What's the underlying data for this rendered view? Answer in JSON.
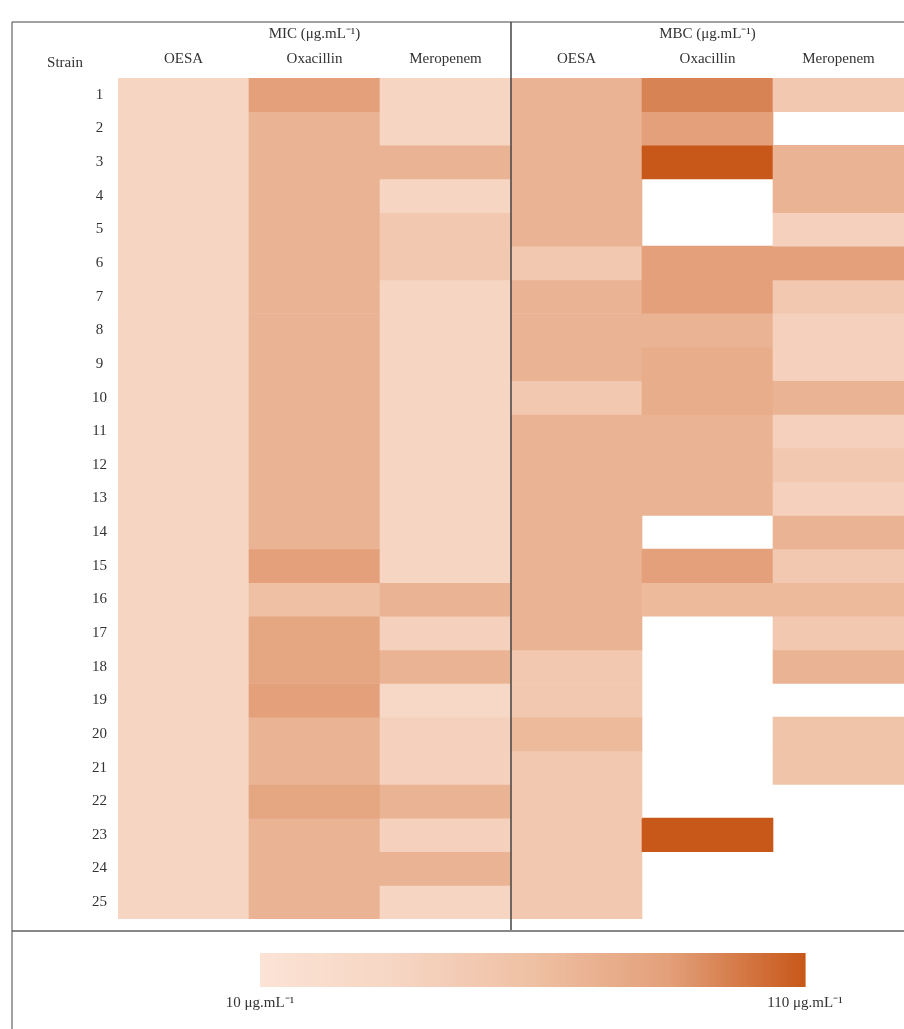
{
  "chart_data": {
    "type": "heatmap",
    "ylabel": "Strain",
    "annotations": [
      "MIC (μg.mL⁻¹)",
      "MBC (μg.mL⁻¹)"
    ],
    "categories": [
      "OESA",
      "Oxacillin",
      "Meropenem",
      "OESA",
      "Oxacillin",
      "Meropenem"
    ],
    "y_categories": [
      "1",
      "2",
      "3",
      "4",
      "5",
      "6",
      "7",
      "8",
      "9",
      "10",
      "11",
      "12",
      "13",
      "14",
      "15",
      "16",
      "17",
      "18",
      "19",
      "20",
      "21",
      "22",
      "23",
      "24",
      "25"
    ],
    "cells": [
      [
        35,
        85,
        35,
        70,
        95,
        50
      ],
      [
        35,
        70,
        35,
        70,
        85,
        null
      ],
      [
        35,
        70,
        70,
        70,
        110,
        70
      ],
      [
        35,
        70,
        35,
        70,
        null,
        70
      ],
      [
        35,
        70,
        50,
        70,
        null,
        40
      ],
      [
        35,
        70,
        50,
        50,
        85,
        85
      ],
      [
        35,
        70,
        35,
        70,
        85,
        50
      ],
      [
        35,
        70,
        35,
        70,
        70,
        40
      ],
      [
        35,
        70,
        35,
        70,
        75,
        40
      ],
      [
        35,
        70,
        35,
        50,
        75,
        70
      ],
      [
        35,
        70,
        35,
        70,
        70,
        40
      ],
      [
        35,
        70,
        35,
        70,
        70,
        50
      ],
      [
        35,
        70,
        35,
        70,
        70,
        40
      ],
      [
        35,
        70,
        35,
        70,
        null,
        70
      ],
      [
        35,
        85,
        35,
        70,
        85,
        50
      ],
      [
        35,
        60,
        70,
        70,
        65,
        65
      ],
      [
        35,
        80,
        40,
        70,
        null,
        50
      ],
      [
        35,
        80,
        70,
        50,
        null,
        70
      ],
      [
        35,
        85,
        30,
        50,
        null,
        null
      ],
      [
        35,
        70,
        40,
        65,
        null,
        55
      ],
      [
        35,
        70,
        40,
        50,
        null,
        55
      ],
      [
        35,
        80,
        70,
        50,
        null,
        null
      ],
      [
        35,
        70,
        40,
        50,
        110,
        null
      ],
      [
        35,
        70,
        70,
        50,
        null,
        null
      ],
      [
        35,
        70,
        35,
        50,
        null,
        null
      ]
    ],
    "clim": [
      10,
      110
    ],
    "cticks": [
      {
        "value": 10,
        "label": "10 μg.mL⁻¹"
      },
      {
        "value": 110,
        "label": "110 μg.mL⁻¹"
      }
    ]
  }
}
